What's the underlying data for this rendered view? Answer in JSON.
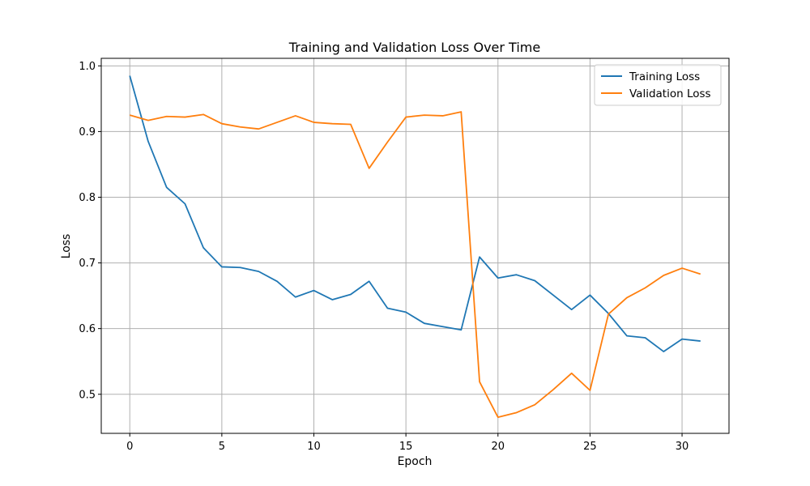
{
  "chart_data": {
    "type": "line",
    "title": "Training and Validation Loss Over Time",
    "xlabel": "Epoch",
    "ylabel": "Loss",
    "xlim": [
      -1.55,
      32.55
    ],
    "ylim": [
      0.4405,
      1.0115
    ],
    "grid": true,
    "legend_position": "top-right",
    "x_ticks": [
      0,
      5,
      10,
      15,
      20,
      25,
      30
    ],
    "x_tick_labels": [
      "0",
      "5",
      "10",
      "15",
      "20",
      "25",
      "30"
    ],
    "y_ticks": [
      0.5,
      0.6,
      0.7,
      0.8,
      0.9,
      1.0
    ],
    "y_tick_labels": [
      "0.5",
      "0.6",
      "0.7",
      "0.8",
      "0.9",
      "1.0"
    ],
    "x": [
      0,
      1,
      2,
      3,
      4,
      5,
      6,
      7,
      8,
      9,
      10,
      11,
      12,
      13,
      14,
      15,
      16,
      17,
      18,
      19,
      20,
      21,
      22,
      23,
      24,
      25,
      26,
      27,
      28,
      29,
      30,
      31
    ],
    "series": [
      {
        "name": "Training Loss",
        "color": "#1f77b4",
        "values": [
          0.985,
          0.885,
          0.815,
          0.79,
          0.723,
          0.694,
          0.693,
          0.687,
          0.672,
          0.648,
          0.658,
          0.644,
          0.652,
          0.672,
          0.631,
          0.625,
          0.608,
          0.603,
          0.598,
          0.709,
          0.677,
          0.682,
          0.673,
          0.651,
          0.629,
          0.651,
          0.623,
          0.589,
          0.586,
          0.565,
          0.584,
          0.581
        ]
      },
      {
        "name": "Validation Loss",
        "color": "#ff7f0e",
        "values": [
          0.925,
          0.917,
          0.923,
          0.922,
          0.926,
          0.912,
          0.907,
          0.904,
          0.914,
          0.924,
          0.914,
          0.912,
          0.911,
          0.844,
          0.884,
          0.922,
          0.925,
          0.924,
          0.93,
          0.519,
          0.465,
          0.472,
          0.484,
          0.507,
          0.532,
          0.506,
          0.622,
          0.647,
          0.662,
          0.681,
          0.692,
          0.683
        ]
      }
    ]
  }
}
